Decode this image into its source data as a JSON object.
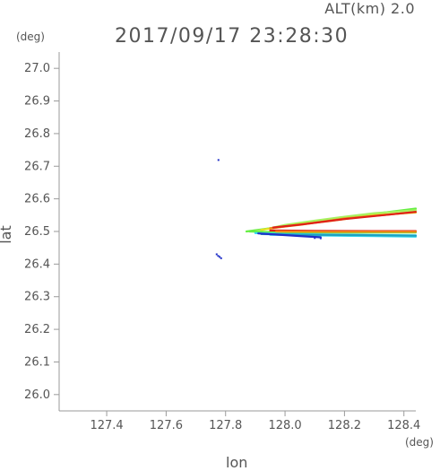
{
  "header": {
    "alt_label": "ALT(km) 2.0",
    "time_label": "2017/09/17 23:28:30"
  },
  "chart_data": {
    "type": "scatter",
    "title": "2017/09/17 23:28:30",
    "xlabel": "lon",
    "ylabel": "lat",
    "x_unit": "(deg)",
    "y_unit": "(deg)",
    "xlim": [
      127.24,
      128.44
    ],
    "ylim": [
      25.95,
      27.05
    ],
    "xticks": [
      127.4,
      127.6,
      127.8,
      128.0,
      128.2,
      128.4
    ],
    "xtick_labels": [
      "127.4",
      "127.6",
      "127.8",
      "128.0",
      "128.2",
      "128.4"
    ],
    "yticks": [
      26.0,
      26.1,
      26.2,
      26.3,
      26.4,
      26.5,
      26.6,
      26.7,
      26.8,
      26.9,
      27.0
    ],
    "ytick_labels": [
      "26.0",
      "26.1",
      "26.2",
      "26.3",
      "26.4",
      "26.5",
      "26.6",
      "26.7",
      "26.8",
      "26.9",
      "27.0"
    ],
    "grid": false,
    "colors": {
      "axis": "#9a9a9a",
      "text": "#555555",
      "green": "#66ee44",
      "lightgreen": "#a8f060",
      "yellow": "#e8e020",
      "orange": "#f08a18",
      "red": "#e02018",
      "cyan": "#30d8f0",
      "blue": "#2030c8",
      "teal": "#20a0c0"
    },
    "features": [
      {
        "color": "green",
        "points": [
          [
            127.87,
            26.5
          ],
          [
            127.95,
            26.51
          ],
          [
            128.05,
            26.525
          ],
          [
            128.15,
            26.535
          ],
          [
            128.25,
            26.548
          ],
          [
            128.35,
            26.56
          ],
          [
            128.44,
            26.57
          ]
        ]
      },
      {
        "color": "lightgreen",
        "points": [
          [
            127.9,
            26.5
          ],
          [
            128.0,
            26.52
          ],
          [
            128.1,
            26.533
          ],
          [
            128.2,
            26.545
          ],
          [
            128.3,
            26.556
          ],
          [
            128.44,
            26.565
          ]
        ]
      },
      {
        "color": "yellow",
        "points": [
          [
            127.92,
            26.505
          ],
          [
            128.05,
            26.522
          ],
          [
            128.15,
            26.532
          ],
          [
            128.3,
            26.55
          ],
          [
            128.44,
            26.558
          ]
        ]
      },
      {
        "color": "orange",
        "points": [
          [
            127.95,
            26.51
          ],
          [
            128.05,
            26.52
          ],
          [
            128.2,
            26.54
          ],
          [
            128.35,
            26.552
          ],
          [
            128.44,
            26.56
          ]
        ]
      },
      {
        "color": "red",
        "points": [
          [
            127.96,
            26.512
          ],
          [
            128.06,
            26.522
          ],
          [
            128.2,
            26.538
          ],
          [
            128.44,
            26.56
          ]
        ]
      },
      {
        "color": "green",
        "points": [
          [
            127.88,
            26.5
          ],
          [
            128.0,
            26.497
          ],
          [
            128.2,
            26.497
          ],
          [
            128.44,
            26.497
          ]
        ]
      },
      {
        "color": "red",
        "points": [
          [
            127.95,
            26.503
          ],
          [
            128.1,
            26.502
          ],
          [
            128.3,
            26.501
          ],
          [
            128.44,
            26.501
          ]
        ]
      },
      {
        "color": "orange",
        "points": [
          [
            127.97,
            26.5
          ],
          [
            128.15,
            26.499
          ],
          [
            128.44,
            26.499
          ]
        ]
      },
      {
        "color": "cyan",
        "points": [
          [
            127.9,
            26.495
          ],
          [
            128.0,
            26.492
          ],
          [
            128.2,
            26.49
          ],
          [
            128.44,
            26.488
          ]
        ]
      },
      {
        "color": "cyan",
        "points": [
          [
            127.95,
            26.49
          ],
          [
            128.1,
            26.488
          ],
          [
            128.3,
            26.486
          ],
          [
            128.44,
            26.484
          ]
        ]
      },
      {
        "color": "teal",
        "points": [
          [
            127.92,
            26.492
          ],
          [
            128.05,
            26.49
          ],
          [
            128.25,
            26.489
          ],
          [
            128.44,
            26.487
          ]
        ]
      },
      {
        "color": "blue",
        "points": [
          [
            127.91,
            26.494
          ],
          [
            127.98,
            26.49
          ],
          [
            128.05,
            26.486
          ],
          [
            128.12,
            26.482
          ]
        ]
      }
    ],
    "points": [
      {
        "x": 127.77,
        "y": 26.43,
        "color": "blue"
      },
      {
        "x": 127.775,
        "y": 26.425,
        "color": "blue"
      },
      {
        "x": 127.78,
        "y": 26.422,
        "color": "blue"
      },
      {
        "x": 127.785,
        "y": 26.418,
        "color": "blue"
      },
      {
        "x": 127.776,
        "y": 26.719,
        "color": "blue"
      },
      {
        "x": 128.1,
        "y": 26.48,
        "color": "blue"
      },
      {
        "x": 128.12,
        "y": 26.479,
        "color": "blue"
      }
    ]
  }
}
